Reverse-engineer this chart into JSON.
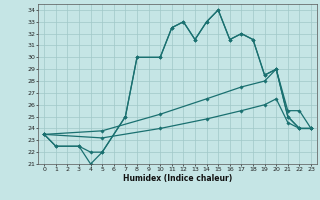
{
  "xlabel": "Humidex (Indice chaleur)",
  "xlim": [
    -0.5,
    23.5
  ],
  "ylim": [
    21,
    34.5
  ],
  "yticks": [
    21,
    22,
    23,
    24,
    25,
    26,
    27,
    28,
    29,
    30,
    31,
    32,
    33,
    34
  ],
  "xticks": [
    0,
    1,
    2,
    3,
    4,
    5,
    6,
    7,
    8,
    9,
    10,
    11,
    12,
    13,
    14,
    15,
    16,
    17,
    18,
    19,
    20,
    21,
    22,
    23
  ],
  "bg_color": "#c5e5e5",
  "grid_color": "#a0c8c8",
  "line_color": "#1a7070",
  "line_width": 0.9,
  "marker": "D",
  "marker_size": 1.8,
  "lines": [
    {
      "x": [
        0,
        1,
        3,
        4,
        5,
        7,
        8,
        10,
        11,
        12,
        13,
        14,
        15,
        16,
        17,
        18,
        19,
        20,
        21,
        22,
        23
      ],
      "y": [
        23.5,
        22.5,
        22.5,
        21.0,
        22.0,
        25.0,
        30.0,
        30.0,
        32.5,
        33.0,
        31.5,
        33.0,
        34.0,
        31.5,
        32.0,
        31.5,
        28.5,
        29.0,
        25.0,
        24.0,
        24.0
      ]
    },
    {
      "x": [
        0,
        1,
        3,
        4,
        5,
        7,
        8,
        10,
        11,
        12,
        13,
        14,
        15,
        16,
        17,
        18,
        19,
        20,
        21,
        22,
        23
      ],
      "y": [
        23.5,
        22.5,
        22.5,
        22.0,
        22.0,
        25.0,
        30.0,
        30.0,
        32.5,
        33.0,
        31.5,
        33.0,
        34.0,
        31.5,
        32.0,
        31.5,
        28.5,
        29.0,
        25.0,
        24.0,
        24.0
      ]
    },
    {
      "x": [
        0,
        5,
        10,
        14,
        17,
        19,
        20,
        21,
        22,
        23
      ],
      "y": [
        23.5,
        23.8,
        25.2,
        26.5,
        27.5,
        28.0,
        29.0,
        25.5,
        25.5,
        24.0
      ]
    },
    {
      "x": [
        0,
        5,
        10,
        14,
        17,
        19,
        20,
        21,
        22,
        23
      ],
      "y": [
        23.5,
        23.2,
        24.0,
        24.8,
        25.5,
        26.0,
        26.5,
        24.5,
        24.0,
        24.0
      ]
    }
  ]
}
